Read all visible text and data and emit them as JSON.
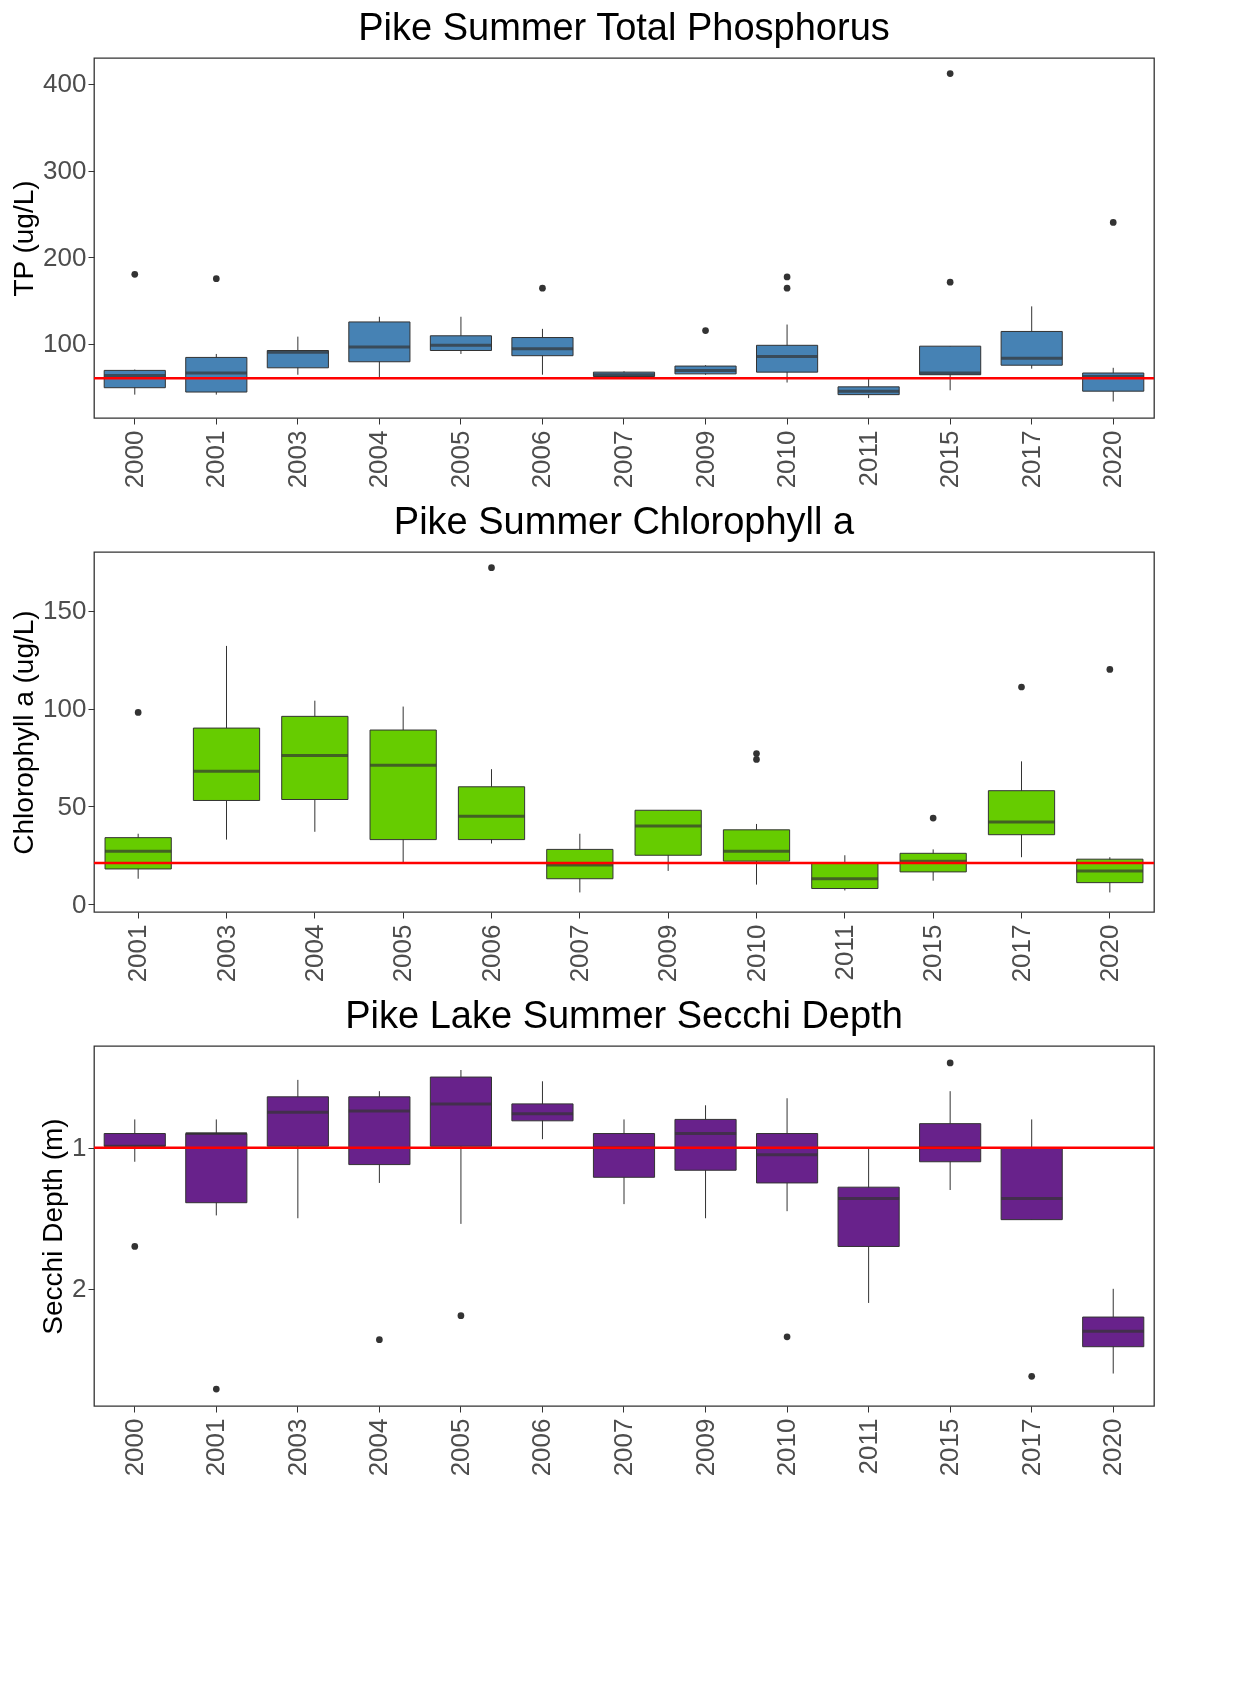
{
  "chart_data": [
    {
      "type": "box",
      "title": "Pike Summer Total Phosphorus",
      "ylabel": "TP (ug/L)",
      "categories": [
        "2000",
        "2001",
        "2003",
        "2004",
        "2005",
        "2006",
        "2007",
        "2009",
        "2010",
        "2011",
        "2015",
        "2017",
        "2020"
      ],
      "ylim": [
        14,
        430
      ],
      "yticks": [
        100,
        200,
        300,
        400
      ],
      "ref_lines": [
        {
          "axis": "y",
          "value": 60,
          "color": "#ff0000"
        }
      ],
      "series": [
        {
          "color": "#4682b4",
          "boxes": [
            {
              "low": 41,
              "q1": 49,
              "median": 63,
              "q3": 69,
              "high": 70,
              "outliers": [
                180
              ]
            },
            {
              "low": 41,
              "q1": 44,
              "median": 66,
              "q3": 84,
              "high": 88,
              "outliers": [
                175
              ]
            },
            {
              "low": 64,
              "q1": 72,
              "median": 90,
              "q3": 92,
              "high": 108
            },
            {
              "low": 61,
              "q1": 79,
              "median": 96,
              "q3": 125,
              "high": 131
            },
            {
              "low": 88,
              "q1": 92,
              "median": 98,
              "q3": 109,
              "high": 131
            },
            {
              "low": 64,
              "q1": 86,
              "median": 94,
              "q3": 107,
              "high": 117,
              "outliers": [
                164
              ]
            },
            {
              "low": 61,
              "q1": 62,
              "median": 64,
              "q3": 67,
              "high": 68
            },
            {
              "low": 64,
              "q1": 65,
              "median": 69,
              "q3": 74,
              "high": 75,
              "outliers": [
                115
              ]
            },
            {
              "low": 55,
              "q1": 67,
              "median": 85,
              "q3": 98,
              "high": 122,
              "outliers": [
                164,
                177
              ]
            },
            {
              "low": 37,
              "q1": 41,
              "median": 45,
              "q3": 50,
              "high": 59
            },
            {
              "low": 46,
              "q1": 64,
              "median": 66,
              "q3": 97,
              "high": 97,
              "outliers": [
                171,
                412
              ]
            },
            {
              "low": 71,
              "q1": 75,
              "median": 83,
              "q3": 114,
              "high": 143
            },
            {
              "low": 33,
              "q1": 45,
              "median": 62,
              "q3": 66,
              "high": 72,
              "outliers": [
                240
              ]
            }
          ]
        }
      ]
    },
    {
      "type": "box",
      "title": "Pike Summer Chlorophyll a",
      "ylabel": "Chlorophyll a (ug/L)",
      "categories": [
        "2001",
        "2003",
        "2004",
        "2005",
        "2006",
        "2007",
        "2009",
        "2010",
        "2011",
        "2015",
        "2017",
        "2020"
      ],
      "ylim": [
        -4,
        180
      ],
      "yticks": [
        0,
        50,
        100,
        150
      ],
      "ref_lines": [
        {
          "axis": "y",
          "value": 21,
          "color": "#ff0000"
        }
      ],
      "series": [
        {
          "color": "#66cc00",
          "boxes": [
            {
              "low": 13,
              "q1": 18,
              "median": 27,
              "q3": 34,
              "high": 36,
              "outliers": [
                98
              ]
            },
            {
              "low": 33,
              "q1": 53,
              "median": 68,
              "q3": 90,
              "high": 132
            },
            {
              "low": 37,
              "q1": 53.5,
              "median": 76,
              "q3": 96,
              "high": 104
            },
            {
              "low": 21,
              "q1": 33,
              "median": 71,
              "q3": 89,
              "high": 101
            },
            {
              "low": 31,
              "q1": 33,
              "median": 45,
              "q3": 60,
              "high": 69,
              "outliers": [
                172
              ]
            },
            {
              "low": 6,
              "q1": 13,
              "median": 20,
              "q3": 28,
              "high": 36
            },
            {
              "low": 17,
              "q1": 25,
              "median": 40,
              "q3": 48,
              "high": 48
            },
            {
              "low": 10,
              "q1": 22,
              "median": 27,
              "q3": 38,
              "high": 41,
              "outliers": [
                74,
                77
              ]
            },
            {
              "low": 7,
              "q1": 8,
              "median": 13,
              "q3": 21,
              "high": 25
            },
            {
              "low": 12,
              "q1": 16.5,
              "median": 22,
              "q3": 26,
              "high": 28,
              "outliers": [
                44
              ]
            },
            {
              "low": 24,
              "q1": 35.5,
              "median": 42,
              "q3": 58,
              "high": 73,
              "outliers": [
                111
              ]
            },
            {
              "low": 6,
              "q1": 11,
              "median": 17,
              "q3": 23,
              "high": 24,
              "outliers": [
                120
              ]
            }
          ]
        }
      ]
    },
    {
      "type": "box",
      "title": "Pike Lake Summer Secchi Depth",
      "ylabel": "Secchi Depth (m)",
      "categories": [
        "2000",
        "2001",
        "2003",
        "2004",
        "2005",
        "2006",
        "2007",
        "2009",
        "2010",
        "2011",
        "2015",
        "2017",
        "2020"
      ],
      "ylim": [
        2.83,
        0.28
      ],
      "yticks": [
        1,
        2
      ],
      "ref_lines": [
        {
          "axis": "y",
          "value": 1,
          "color": "#ff0000"
        }
      ],
      "series": [
        {
          "color": "#68228b",
          "boxes": [
            {
              "low": 0.8,
              "q1": 0.9,
              "median": 0.99,
              "q3": 0.99,
              "high": 1.1,
              "outliers": [
                1.7
              ]
            },
            {
              "low": 0.8,
              "q1": 0.9,
              "median": 0.9,
              "q3": 1.39,
              "high": 1.48,
              "outliers": [
                2.71
              ]
            },
            {
              "low": 0.52,
              "q1": 0.64,
              "median": 0.75,
              "q3": 0.99,
              "high": 1.5
            },
            {
              "low": 0.6,
              "q1": 0.64,
              "median": 0.74,
              "q3": 1.12,
              "high": 1.25,
              "outliers": [
                2.36
              ]
            },
            {
              "low": 0.45,
              "q1": 0.5,
              "median": 0.69,
              "q3": 0.99,
              "high": 1.54,
              "outliers": [
                2.19
              ]
            },
            {
              "low": 0.53,
              "q1": 0.69,
              "median": 0.76,
              "q3": 0.81,
              "high": 0.94
            },
            {
              "low": 0.8,
              "q1": 0.9,
              "median": 1.0,
              "q3": 1.21,
              "high": 1.4
            },
            {
              "low": 0.7,
              "q1": 0.8,
              "median": 0.9,
              "q3": 1.16,
              "high": 1.5
            },
            {
              "low": 0.65,
              "q1": 0.9,
              "median": 1.05,
              "q3": 1.25,
              "high": 1.45,
              "outliers": [
                2.34
              ]
            },
            {
              "low": 1.0,
              "q1": 1.28,
              "median": 1.36,
              "q3": 1.7,
              "high": 2.1
            },
            {
              "low": 0.6,
              "q1": 0.83,
              "median": 1.0,
              "q3": 1.1,
              "high": 1.3,
              "outliers": [
                0.4
              ]
            },
            {
              "low": 0.8,
              "q1": 1.0,
              "median": 1.36,
              "q3": 1.51,
              "high": 1.51,
              "outliers": [
                2.62
              ]
            },
            {
              "low": 2.0,
              "q1": 2.2,
              "median": 2.3,
              "q3": 2.41,
              "high": 2.6
            }
          ]
        }
      ]
    }
  ]
}
